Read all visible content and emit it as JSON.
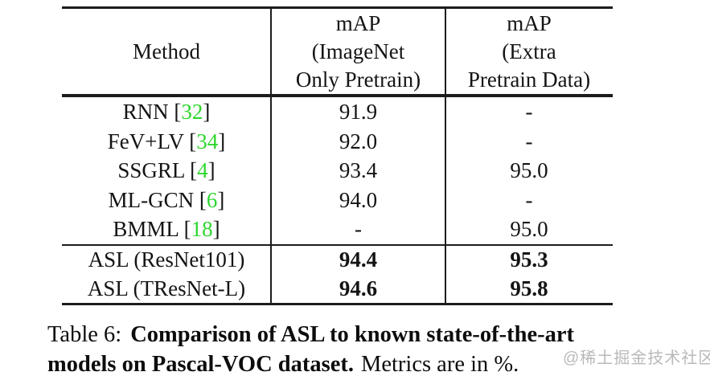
{
  "table": {
    "columns": [
      {
        "label": "Method"
      },
      {
        "lines": [
          "mAP",
          "(ImageNet",
          "Only Pretrain)"
        ]
      },
      {
        "lines": [
          "mAP",
          "(Extra",
          "Pretrain Data)"
        ]
      }
    ],
    "rows": [
      {
        "method": "RNN",
        "cite_open": " [",
        "cite": "32",
        "cite_close": "]",
        "map_imagenet": "91.9",
        "map_extra": "-"
      },
      {
        "method": "FeV+LV",
        "cite_open": " [",
        "cite": "34",
        "cite_close": "]",
        "map_imagenet": "92.0",
        "map_extra": "-"
      },
      {
        "method": "SSGRL",
        "cite_open": " [",
        "cite": "4",
        "cite_close": "]",
        "map_imagenet": "93.4",
        "map_extra": "95.0"
      },
      {
        "method": "ML-GCN",
        "cite_open": " [",
        "cite": "6",
        "cite_close": "]",
        "map_imagenet": "94.0",
        "map_extra": "-"
      },
      {
        "method": "BMML",
        "cite_open": " [",
        "cite": "18",
        "cite_close": "]",
        "map_imagenet": "-",
        "map_extra": "95.0"
      },
      {
        "method": "ASL (ResNet101)",
        "map_imagenet": "94.4",
        "map_extra": "95.3",
        "bold": true
      },
      {
        "method": "ASL (TResNet-L)",
        "map_imagenet": "94.6",
        "map_extra": "95.8",
        "bold": true
      }
    ]
  },
  "caption": {
    "prefix": "Table 6:",
    "bold_line1": "Comparison of ASL to known state-of-the-art",
    "bold_line2": "models on Pascal-VOC dataset.",
    "suffix": "Metrics are in %."
  },
  "watermark": "@稀土掘金技术社区",
  "colors": {
    "citation_green": "#2dd62d",
    "rule_black": "#1c1c1c",
    "watermark_gray": "#b9b9b9",
    "background": "#ffffff"
  }
}
